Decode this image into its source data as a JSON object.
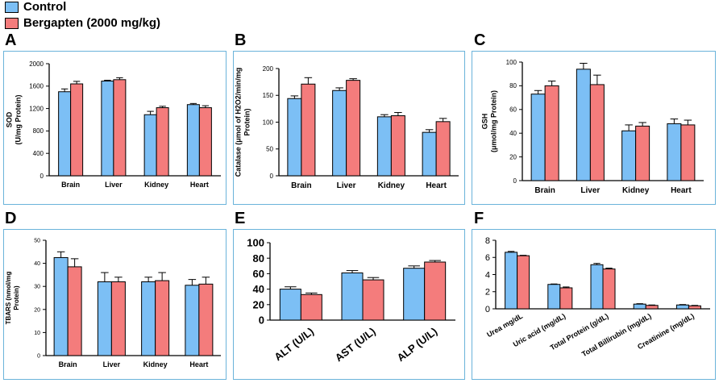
{
  "legend": {
    "items": [
      {
        "label": "Control",
        "color": "#7cbff5"
      },
      {
        "label": "Bergapten (2000 mg/kg)",
        "color": "#f47c7c"
      }
    ]
  },
  "colors": {
    "control": "#7cbff5",
    "bergapten": "#f47c7c",
    "panel_border": "#6ab3da"
  },
  "chart_data": [
    {
      "panel": "A",
      "type": "bar",
      "title": "",
      "ylabel": "SOD (U/mg Protein)",
      "ylabel_lines": [
        "SOD",
        "(U/mg Protein)"
      ],
      "categories": [
        "Brain",
        "Liver",
        "Kidney",
        "Heart"
      ],
      "ylim": [
        0,
        2000
      ],
      "yticks": [
        0,
        400,
        800,
        1200,
        1600,
        2000
      ],
      "series": [
        {
          "name": "Control",
          "values": [
            1500,
            1690,
            1090,
            1270
          ],
          "errors": [
            50,
            15,
            60,
            20
          ]
        },
        {
          "name": "Bergapten (2000 mg/kg)",
          "values": [
            1640,
            1715,
            1215,
            1215
          ],
          "errors": [
            45,
            35,
            25,
            35
          ]
        }
      ]
    },
    {
      "panel": "B",
      "type": "bar",
      "title": "",
      "ylabel": "Catalase (μmol of H2O2/min/mg Protein)",
      "ylabel_lines": [
        "Catalase (μmol of H2O2/min/mg",
        "Protein)"
      ],
      "categories": [
        "Brain",
        "Liver",
        "Kidney",
        "Heart"
      ],
      "ylim": [
        0,
        200
      ],
      "yticks": [
        0,
        50,
        100,
        150,
        200
      ],
      "series": [
        {
          "name": "Control",
          "values": [
            144,
            159,
            110,
            81
          ],
          "errors": [
            5,
            5,
            4,
            5
          ]
        },
        {
          "name": "Bergapten (2000 mg/kg)",
          "values": [
            171,
            178,
            112,
            101
          ],
          "errors": [
            12,
            3,
            6,
            6
          ]
        }
      ]
    },
    {
      "panel": "C",
      "type": "bar",
      "title": "",
      "ylabel": "GSH (μmol/mg Protein)",
      "ylabel_lines": [
        "GSH",
        "(μmol/mg Protein)"
      ],
      "categories": [
        "Brain",
        "Liver",
        "Kidney",
        "Heart"
      ],
      "ylim": [
        0,
        100
      ],
      "yticks": [
        0,
        20,
        40,
        60,
        80,
        100
      ],
      "series": [
        {
          "name": "Control",
          "values": [
            73,
            94,
            42,
            48
          ],
          "errors": [
            3,
            5,
            5,
            4
          ]
        },
        {
          "name": "Bergapten (2000 mg/kg)",
          "values": [
            80,
            81,
            46,
            47
          ],
          "errors": [
            4,
            8,
            3,
            4
          ]
        }
      ]
    },
    {
      "panel": "D",
      "type": "bar",
      "title": "",
      "ylabel": "TBARS (nmol/mg Protein)",
      "ylabel_lines": [
        "TBARS (nmol/mg",
        "Protein)"
      ],
      "categories": [
        "Brain",
        "Liver",
        "Kidney",
        "Heart"
      ],
      "ylim": [
        0,
        50
      ],
      "yticks": [
        0,
        10,
        20,
        30,
        40,
        50
      ],
      "series": [
        {
          "name": "Control",
          "values": [
            42.5,
            32,
            32,
            30.5
          ],
          "errors": [
            2.5,
            4,
            2,
            2.5
          ]
        },
        {
          "name": "Bergapten (2000 mg/kg)",
          "values": [
            38.5,
            32,
            32.5,
            31
          ],
          "errors": [
            3.5,
            2,
            3.5,
            3
          ]
        }
      ]
    },
    {
      "panel": "E",
      "type": "bar",
      "title": "",
      "ylabel": "",
      "ylabel_lines": [],
      "categories": [
        "ALT (U/L)",
        "AST (U/L)",
        "ALP (U/L)"
      ],
      "ylim": [
        0,
        100
      ],
      "yticks": [
        0,
        20,
        40,
        60,
        80,
        100
      ],
      "series": [
        {
          "name": "Control",
          "values": [
            40,
            61,
            67
          ],
          "errors": [
            3,
            3,
            3
          ]
        },
        {
          "name": "Bergapten (2000 mg/kg)",
          "values": [
            33,
            52,
            75
          ],
          "errors": [
            2,
            3,
            2
          ]
        }
      ]
    },
    {
      "panel": "F",
      "type": "bar",
      "title": "",
      "ylabel": "",
      "ylabel_lines": [],
      "categories": [
        "Urea mg/dL",
        "Uric acid (mg/dL)",
        "Total Protein (g/dL)",
        "Total Billirubin (mg/dL)",
        "Creatinine (mg/dL)"
      ],
      "ylim": [
        0,
        8
      ],
      "yticks": [
        0,
        2,
        4,
        6,
        8
      ],
      "series": [
        {
          "name": "Control",
          "values": [
            6.6,
            2.85,
            5.15,
            0.55,
            0.45
          ],
          "errors": [
            0.1,
            0.05,
            0.15,
            0.05,
            0.05
          ]
        },
        {
          "name": "Bergapten (2000 mg/kg)",
          "values": [
            6.2,
            2.45,
            4.65,
            0.4,
            0.35
          ],
          "errors": [
            0.05,
            0.1,
            0.1,
            0.05,
            0.05
          ]
        }
      ]
    }
  ]
}
